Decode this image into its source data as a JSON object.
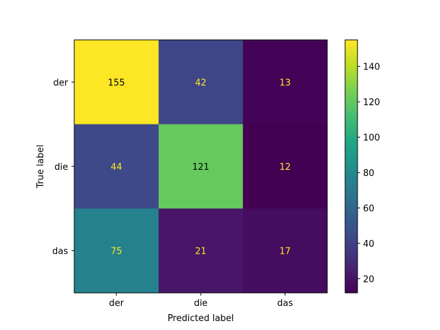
{
  "chart_data": {
    "type": "heatmap",
    "title": "",
    "xlabel": "Predicted label",
    "ylabel": "True label",
    "x_categories": [
      "der",
      "die",
      "das"
    ],
    "y_categories": [
      "der",
      "die",
      "das"
    ],
    "values": [
      [
        155,
        42,
        13
      ],
      [
        44,
        121,
        12
      ],
      [
        75,
        21,
        17
      ]
    ],
    "colormap": "viridis",
    "colorbar": {
      "range": [
        12,
        155
      ],
      "ticks": [
        20,
        40,
        60,
        80,
        100,
        120,
        140
      ]
    },
    "cell_label_colors": {
      "on_dark": "#fde725",
      "on_light": "#000000"
    },
    "grid": false,
    "legend": "none"
  }
}
